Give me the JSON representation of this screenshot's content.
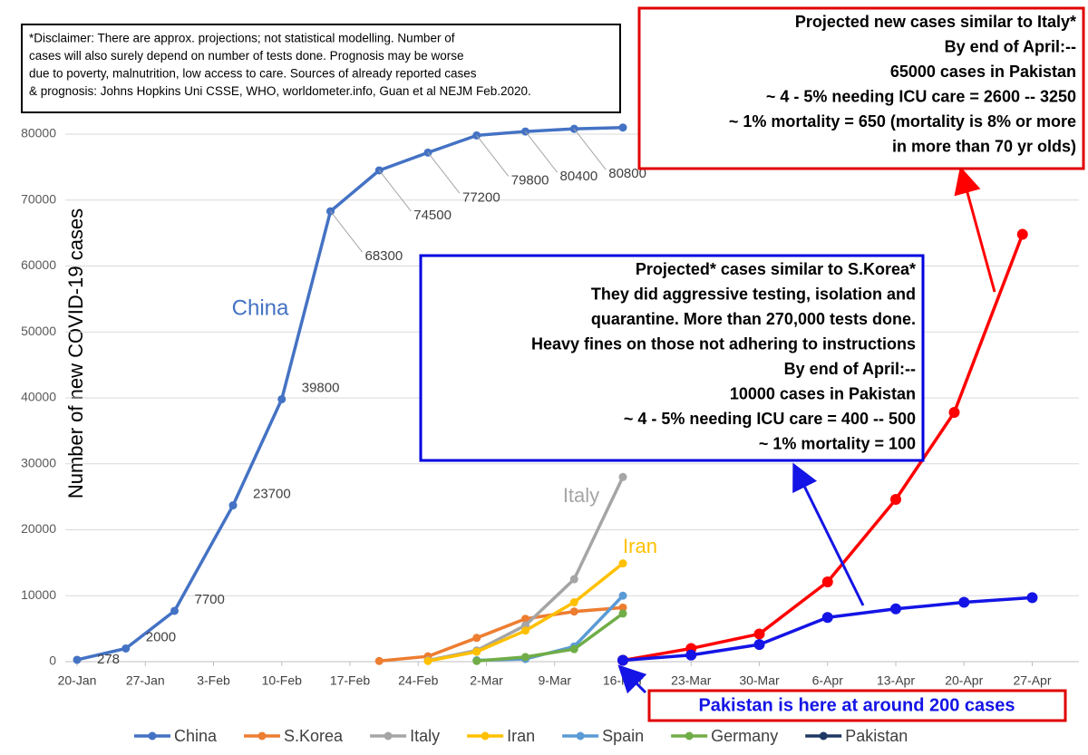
{
  "chart_data": {
    "type": "line",
    "y_label": "Number of new COVID-19 cases",
    "xlim": [
      -2,
      100
    ],
    "xticks": [
      {
        "value": 0,
        "label": "20-Jan"
      },
      {
        "value": 7,
        "label": "27-Jan"
      },
      {
        "value": 14,
        "label": "3-Feb"
      },
      {
        "value": 21,
        "label": "10-Feb"
      },
      {
        "value": 28,
        "label": "17-Feb"
      },
      {
        "value": 35,
        "label": "24-Feb"
      },
      {
        "value": 42,
        "label": "2-Mar"
      },
      {
        "value": 49,
        "label": "9-Mar"
      },
      {
        "value": 56,
        "label": "16-Mar"
      },
      {
        "value": 63,
        "label": "23-Mar"
      },
      {
        "value": 70,
        "label": "30-Mar"
      },
      {
        "value": 77,
        "label": "6-Apr"
      },
      {
        "value": 84,
        "label": "13-Apr"
      },
      {
        "value": 91,
        "label": "20-Apr"
      },
      {
        "value": 98,
        "label": "27-Apr"
      }
    ],
    "ylim": [
      0,
      85000
    ],
    "yticks": [
      0,
      10000,
      20000,
      30000,
      40000,
      50000,
      60000,
      70000,
      80000
    ],
    "grid": true,
    "legend": "bottom",
    "series": [
      {
        "name": "China",
        "color": "#4472c4",
        "x": [
          0,
          5,
          10,
          16,
          21,
          26,
          31,
          36,
          41,
          46,
          51,
          56
        ],
        "values": [
          278,
          2000,
          7700,
          23700,
          39800,
          68300,
          74500,
          77200,
          79800,
          80400,
          80800,
          81000
        ],
        "value_labels": [
          "278",
          "2000",
          "7700",
          "23700",
          "39800",
          "68300",
          "74500",
          "77200",
          "79800",
          "80400",
          "80800",
          null
        ]
      },
      {
        "name": "S.Korea",
        "color": "#ed7d31",
        "x": [
          31,
          36,
          41,
          46,
          51,
          56
        ],
        "values": [
          100,
          800,
          3600,
          6500,
          7600,
          8200
        ]
      },
      {
        "name": "Italy",
        "color": "#a5a5a5",
        "x": [
          36,
          41,
          46,
          51,
          56
        ],
        "values": [
          200,
          1700,
          5500,
          12500,
          28000
        ]
      },
      {
        "name": "Iran",
        "color": "#ffc000",
        "x": [
          36,
          41,
          46,
          51,
          56
        ],
        "values": [
          100,
          1500,
          4700,
          9000,
          14900
        ]
      },
      {
        "name": "Spain",
        "color": "#5b9bd5",
        "x": [
          41,
          46,
          51,
          56
        ],
        "values": [
          200,
          400,
          2300,
          10000
        ]
      },
      {
        "name": "Germany",
        "color": "#70ad47",
        "x": [
          41,
          46,
          51,
          56
        ],
        "values": [
          100,
          700,
          1900,
          7300
        ]
      },
      {
        "name": "Pakistan",
        "color": "#1f3864",
        "x": [
          56
        ],
        "values": [
          200
        ]
      },
      {
        "color": "#ff0000",
        "x": [
          56,
          63,
          70,
          77,
          84,
          90,
          97
        ],
        "values": [
          200,
          2000,
          4200,
          12100,
          24600,
          37800,
          64800
        ]
      },
      {
        "color": "#1414e6",
        "x": [
          56,
          63,
          70,
          77,
          84,
          91,
          98
        ],
        "values": [
          200,
          1000,
          2600,
          6700,
          8000,
          9000,
          9700
        ]
      }
    ],
    "annotations": {
      "disclaimer": [
        "*Disclaimer: There are approx. projections; not statistical modelling. Number of",
        "cases will also surely depend on number of tests done. Prognosis may be worse",
        "due to poverty, malnutrition, low access to care. Sources of already reported cases",
        "& prognosis: Johns Hopkins Uni CSSE, WHO, worldometer.info, Guan et al NEJM Feb.2020."
      ],
      "italy_projection": [
        "Projected new cases similar to Italy*",
        "By end of April:--",
        "65000 cases in Pakistan",
        "~ 4 - 5% needing ICU care = 2600 -- 3250",
        "~ 1% mortality = 650 (mortality is 8% or more",
        "in more than 70 yr olds)"
      ],
      "korea_projection": [
        "Projected* cases similar to S.Korea*",
        "They did aggressive testing, isolation and",
        "quarantine. More than 270,000 tests done.",
        "Heavy fines on those not adhering to instructions",
        "By end of April:--",
        "10000 cases in Pakistan",
        "~ 4 - 5% needing ICU care = 400 -- 500",
        "~ 1% mortality = 100"
      ],
      "pakistan_note": "Pakistan is here at around 200 cases"
    }
  }
}
